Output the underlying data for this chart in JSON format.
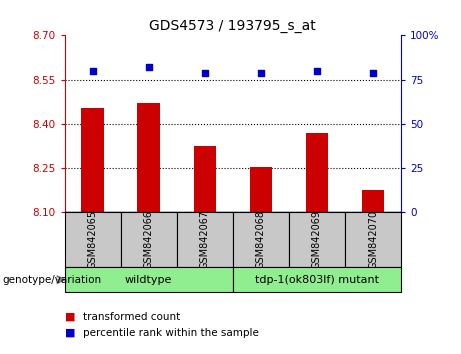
{
  "title": "GDS4573 / 193795_s_at",
  "categories": [
    "GSM842065",
    "GSM842066",
    "GSM842067",
    "GSM842068",
    "GSM842069",
    "GSM842070"
  ],
  "bar_values": [
    8.455,
    8.47,
    8.325,
    8.255,
    8.37,
    8.175
  ],
  "scatter_values": [
    80,
    82,
    79,
    79,
    80,
    79
  ],
  "bar_color": "#cc0000",
  "scatter_color": "#0000cc",
  "ylim_left": [
    8.1,
    8.7
  ],
  "ylim_right": [
    0,
    100
  ],
  "yticks_left": [
    8.1,
    8.25,
    8.4,
    8.55,
    8.7
  ],
  "yticks_right": [
    0,
    25,
    50,
    75,
    100
  ],
  "ytick_labels_right": [
    "0",
    "25",
    "50",
    "75",
    "100%"
  ],
  "hlines": [
    8.25,
    8.4,
    8.55
  ],
  "group1_label": "wildtype",
  "group2_label": "tdp-1(ok803lf) mutant",
  "group1_indices": [
    0,
    1,
    2
  ],
  "group2_indices": [
    3,
    4,
    5
  ],
  "genotype_label": "genotype/variation",
  "legend_bar_label": "transformed count",
  "legend_scatter_label": "percentile rank within the sample",
  "bar_bottom": 8.1,
  "group_box_color": "#90ee90",
  "tick_box_color": "#c8c8c8",
  "bar_width": 0.4
}
